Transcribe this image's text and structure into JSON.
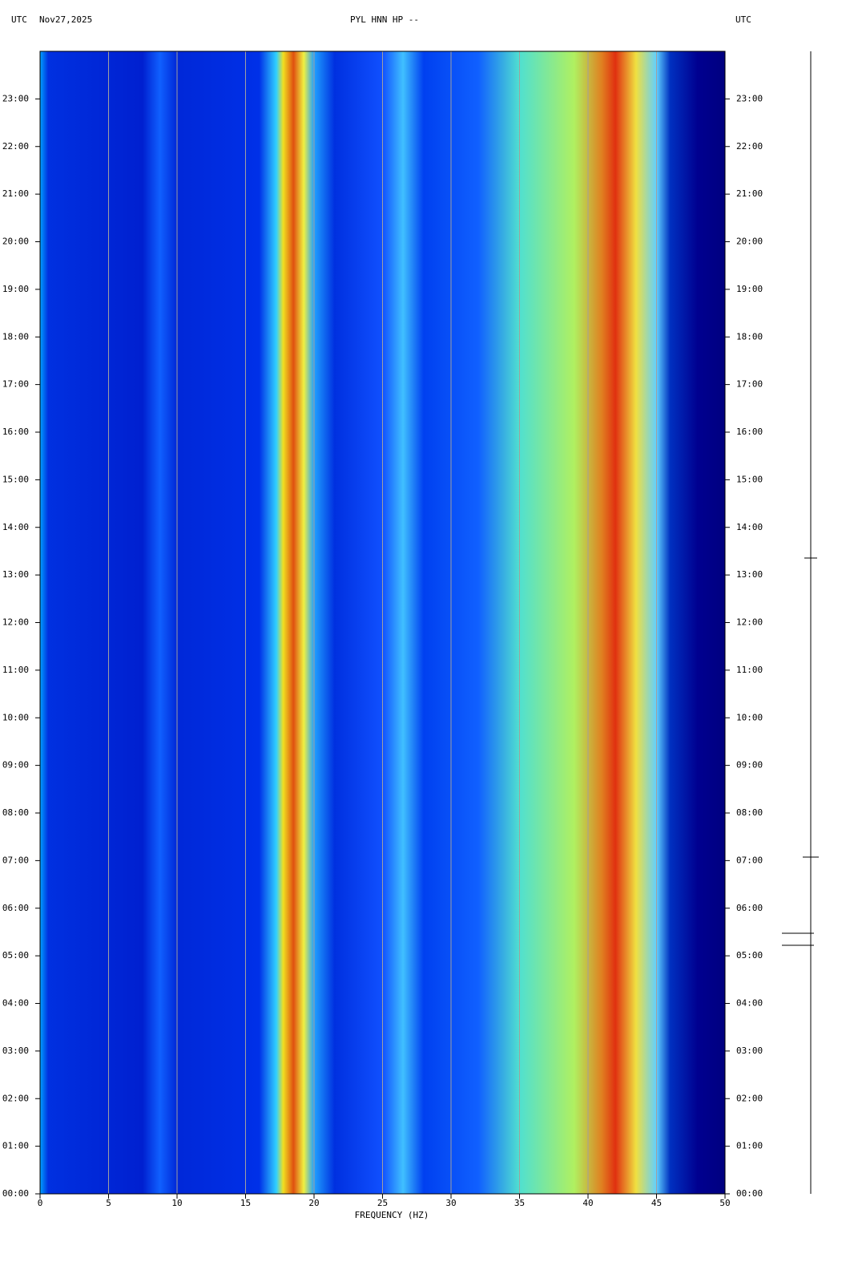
{
  "chart_data": {
    "type": "spectrogram",
    "title": "PYL HNN HP --",
    "left_label": "UTC",
    "date": "Nov27,2025",
    "right_label": "UTC",
    "x_label": "FREQUENCY (HZ)",
    "xlim": [
      0,
      50
    ],
    "xticks": [
      0,
      5,
      10,
      15,
      20,
      25,
      30,
      35,
      40,
      45,
      50
    ],
    "ylim": [
      0,
      24
    ],
    "yticks": [
      {
        "value": 0,
        "label": "00:00"
      },
      {
        "value": 1,
        "label": "01:00"
      },
      {
        "value": 2,
        "label": "02:00"
      },
      {
        "value": 3,
        "label": "03:00"
      },
      {
        "value": 4,
        "label": "04:00"
      },
      {
        "value": 5,
        "label": "05:00"
      },
      {
        "value": 6,
        "label": "06:00"
      },
      {
        "value": 7,
        "label": "07:00"
      },
      {
        "value": 8,
        "label": "08:00"
      },
      {
        "value": 9,
        "label": "09:00"
      },
      {
        "value": 10,
        "label": "10:00"
      },
      {
        "value": 11,
        "label": "11:00"
      },
      {
        "value": 12,
        "label": "12:00"
      },
      {
        "value": 13,
        "label": "13:00"
      },
      {
        "value": 14,
        "label": "14:00"
      },
      {
        "value": 15,
        "label": "15:00"
      },
      {
        "value": 16,
        "label": "16:00"
      },
      {
        "value": 17,
        "label": "17:00"
      },
      {
        "value": 18,
        "label": "18:00"
      },
      {
        "value": 19,
        "label": "19:00"
      },
      {
        "value": 20,
        "label": "20:00"
      },
      {
        "value": 21,
        "label": "21:00"
      },
      {
        "value": 22,
        "label": "22:00"
      },
      {
        "value": 23,
        "label": "23:00"
      }
    ],
    "grid": true
  }
}
